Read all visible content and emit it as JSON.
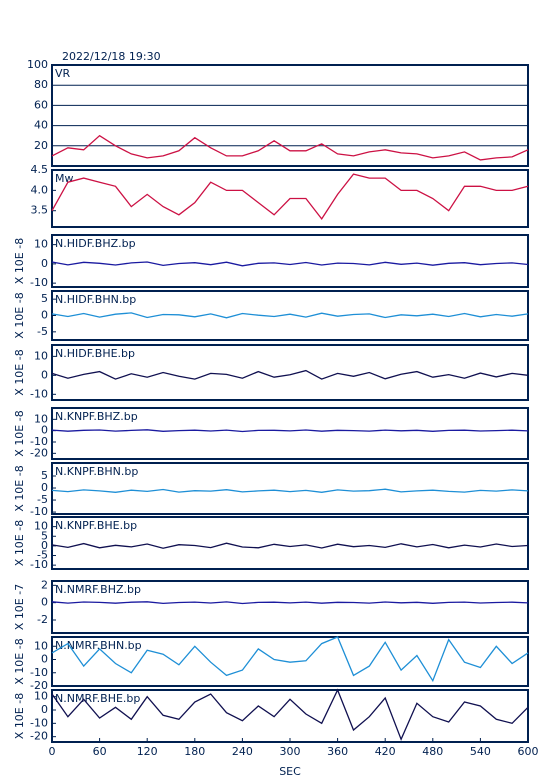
{
  "chart_data": [
    {
      "type": "line",
      "title": "2022/12/18  19:30",
      "label": "VR",
      "color": "#cc1144",
      "grid": true,
      "x": [
        0,
        20,
        40,
        60,
        80,
        100,
        120,
        140,
        160,
        180,
        200,
        220,
        240,
        260,
        280,
        300,
        320,
        340,
        360,
        380,
        400,
        420,
        440,
        460,
        480,
        500,
        520,
        540,
        560,
        580,
        600
      ],
      "values": [
        10,
        18,
        16,
        30,
        20,
        12,
        8,
        10,
        15,
        28,
        18,
        10,
        10,
        15,
        25,
        15,
        15,
        22,
        12,
        10,
        14,
        16,
        13,
        12,
        8,
        10,
        14,
        6,
        8,
        9,
        16
      ],
      "xlim": [
        0,
        600
      ],
      "ylim": [
        0,
        100
      ],
      "yticks": [
        20,
        40,
        60,
        80,
        100
      ]
    },
    {
      "type": "line",
      "label": "Mw",
      "color": "#cc1144",
      "x": [
        0,
        20,
        40,
        60,
        80,
        100,
        120,
        140,
        160,
        180,
        200,
        220,
        240,
        260,
        280,
        300,
        320,
        340,
        360,
        380,
        400,
        420,
        440,
        460,
        480,
        500,
        520,
        540,
        560,
        580,
        600
      ],
      "values": [
        3.5,
        4.2,
        4.3,
        4.2,
        4.1,
        3.6,
        3.9,
        3.6,
        3.4,
        3.7,
        4.2,
        4.0,
        4.0,
        3.7,
        3.4,
        3.8,
        3.8,
        3.3,
        3.9,
        4.4,
        4.3,
        4.3,
        4.0,
        4.0,
        3.8,
        3.5,
        4.1,
        4.1,
        4.0,
        4.0,
        4.1
      ],
      "xlim": [
        0,
        600
      ],
      "ylim": [
        3.1,
        4.5
      ],
      "yticks": [
        3.5,
        {
          "value": 4,
          "label": "4.0"
        },
        4.5
      ]
    },
    {
      "type": "line",
      "label": "N.HIDF.BHZ.bp",
      "ylabel": "X 10E -8",
      "color": "#1a1aa0",
      "x": [
        0,
        20,
        40,
        60,
        80,
        100,
        120,
        140,
        160,
        180,
        200,
        220,
        240,
        260,
        280,
        300,
        320,
        340,
        360,
        380,
        400,
        420,
        440,
        460,
        480,
        500,
        520,
        540,
        560,
        580,
        600
      ],
      "values": [
        1,
        -0.5,
        0.8,
        0.3,
        -0.6,
        0.5,
        1,
        -0.8,
        0.2,
        0.6,
        -0.4,
        0.9,
        -1,
        0.3,
        0.5,
        -0.3,
        0.7,
        -0.6,
        0.4,
        0.2,
        -0.5,
        0.8,
        -0.2,
        0.4,
        -0.7,
        0.3,
        0.6,
        -0.4,
        0.2,
        0.5,
        -0.3
      ],
      "xlim": [
        0,
        600
      ],
      "ylim": [
        -12,
        15
      ],
      "yticks": [
        10,
        0,
        -10
      ]
    },
    {
      "type": "line",
      "label": "N.HIDF.BHN.bp",
      "ylabel": "X 10E -8",
      "color": "#1e8fd6",
      "x": [
        0,
        20,
        40,
        60,
        80,
        100,
        120,
        140,
        160,
        180,
        200,
        220,
        240,
        260,
        280,
        300,
        320,
        340,
        360,
        380,
        400,
        420,
        440,
        460,
        480,
        500,
        520,
        540,
        560,
        580,
        600
      ],
      "values": [
        0.5,
        -0.3,
        0.6,
        -0.5,
        0.4,
        0.8,
        -0.6,
        0.3,
        0.2,
        -0.4,
        0.5,
        -0.7,
        0.6,
        0.1,
        -0.3,
        0.4,
        -0.5,
        0.7,
        -0.2,
        0.3,
        0.5,
        -0.6,
        0.2,
        -0.1,
        0.4,
        -0.3,
        0.6,
        -0.4,
        0.3,
        -0.2,
        0.5
      ],
      "xlim": [
        0,
        600
      ],
      "ylim": [
        -7.5,
        7.5
      ],
      "yticks": [
        5,
        0,
        -5
      ]
    },
    {
      "type": "line",
      "label": "N.HIDF.BHE.bp",
      "ylabel": "X 10E -8",
      "color": "#101050",
      "x": [
        0,
        20,
        40,
        60,
        80,
        100,
        120,
        140,
        160,
        180,
        200,
        220,
        240,
        260,
        280,
        300,
        320,
        340,
        360,
        380,
        400,
        420,
        440,
        460,
        480,
        500,
        520,
        540,
        560,
        580,
        600
      ],
      "values": [
        1,
        -1.5,
        0.5,
        2,
        -2,
        0.8,
        -1,
        1.5,
        -0.5,
        -2,
        1,
        0.5,
        -1.5,
        2,
        -1,
        0.3,
        2.5,
        -2,
        1,
        -0.5,
        1.5,
        -1.8,
        0.6,
        2,
        -1,
        0.4,
        -1.5,
        1.2,
        -0.8,
        1,
        0
      ],
      "xlim": [
        0,
        600
      ],
      "ylim": [
        -13,
        16
      ],
      "yticks": [
        10,
        0,
        -10
      ]
    },
    {
      "type": "line",
      "label": "N.KNPF.BHZ.bp",
      "ylabel": "X 10E -8",
      "color": "#1a1aa0",
      "x": [
        0,
        20,
        40,
        60,
        80,
        100,
        120,
        140,
        160,
        180,
        200,
        220,
        240,
        260,
        280,
        300,
        320,
        340,
        360,
        380,
        400,
        420,
        440,
        460,
        480,
        500,
        520,
        540,
        560,
        580,
        600
      ],
      "values": [
        0.5,
        -0.5,
        0.3,
        0.6,
        -0.4,
        0.2,
        0.8,
        -0.6,
        0.1,
        0.4,
        -0.3,
        0.5,
        -0.7,
        0.2,
        0.3,
        -0.2,
        0.6,
        -0.5,
        0.3,
        0.1,
        -0.4,
        0.5,
        -0.1,
        0.3,
        -0.6,
        0.2,
        0.4,
        -0.3,
        0.1,
        0.4,
        -0.2
      ],
      "xlim": [
        0,
        600
      ],
      "ylim": [
        -25,
        20
      ],
      "yticks": [
        10,
        0,
        -10,
        -20
      ]
    },
    {
      "type": "line",
      "label": "N.KNPF.BHN.bp",
      "ylabel": "X 10E -8",
      "color": "#1e8fd6",
      "x": [
        0,
        20,
        40,
        60,
        80,
        100,
        120,
        140,
        160,
        180,
        200,
        220,
        240,
        260,
        280,
        300,
        320,
        340,
        360,
        380,
        400,
        420,
        440,
        460,
        480,
        500,
        520,
        540,
        560,
        580,
        600
      ],
      "values": [
        -1,
        -1.5,
        -0.8,
        -1.2,
        -1.8,
        -0.9,
        -1.4,
        -0.6,
        -1.7,
        -1.1,
        -1.3,
        -0.7,
        -1.6,
        -1.2,
        -0.9,
        -1.5,
        -1,
        -1.8,
        -0.8,
        -1.3,
        -1.1,
        -0.5,
        -1.6,
        -1.2,
        -0.9,
        -1.4,
        -1.7,
        -1,
        -1.3,
        -0.8,
        -1.2
      ],
      "xlim": [
        0,
        600
      ],
      "ylim": [
        -10.8,
        10.4
      ],
      "yticks": [
        5,
        0,
        -5,
        -10
      ]
    },
    {
      "type": "line",
      "label": "N.KNPF.BHE.bp",
      "ylabel": "X 10E -8",
      "color": "#101050",
      "x": [
        0,
        20,
        40,
        60,
        80,
        100,
        120,
        140,
        160,
        180,
        200,
        220,
        240,
        260,
        280,
        300,
        320,
        340,
        360,
        380,
        400,
        420,
        440,
        460,
        480,
        500,
        520,
        540,
        560,
        580,
        600
      ],
      "values": [
        0.5,
        -0.8,
        1.2,
        -1,
        0.3,
        -0.5,
        1,
        -1.2,
        0.6,
        0.2,
        -0.9,
        1.4,
        -0.6,
        -1,
        0.8,
        -0.3,
        0.5,
        -1.1,
        0.9,
        -0.4,
        0.2,
        -0.8,
        1.1,
        -0.5,
        0.7,
        -1,
        0.4,
        -0.6,
        1,
        -0.3,
        0.2
      ],
      "xlim": [
        0,
        600
      ],
      "ylim": [
        -12,
        15
      ],
      "yticks": [
        10,
        5,
        0,
        -5,
        -10
      ]
    },
    {
      "type": "line",
      "label": "N.NMRF.BHZ.bp",
      "ylabel": "X 10E -7",
      "color": "#1a1aa0",
      "x": [
        0,
        20,
        40,
        60,
        80,
        100,
        120,
        140,
        160,
        180,
        200,
        220,
        240,
        260,
        280,
        300,
        320,
        340,
        360,
        380,
        400,
        420,
        440,
        460,
        480,
        500,
        520,
        540,
        560,
        580,
        600
      ],
      "values": [
        0.1,
        -0.05,
        0.08,
        0.03,
        -0.06,
        0.05,
        0.1,
        -0.08,
        0.02,
        0.06,
        -0.04,
        0.09,
        -0.1,
        0.03,
        0.05,
        -0.03,
        0.07,
        -0.06,
        0.04,
        0.02,
        -0.05,
        0.08,
        -0.02,
        0.04,
        -0.07,
        0.03,
        0.06,
        -0.04,
        0.02,
        0.05,
        -0.03
      ],
      "xlim": [
        0,
        600
      ],
      "ylim": [
        -3.5,
        2.5
      ],
      "yticks": [
        2,
        0,
        -2
      ]
    },
    {
      "type": "line",
      "label": "N.NMRF.BHN.bp",
      "ylabel": "X 10E -8",
      "color": "#1e8fd6",
      "x": [
        0,
        20,
        40,
        60,
        80,
        100,
        120,
        140,
        160,
        180,
        200,
        220,
        240,
        260,
        280,
        300,
        320,
        340,
        360,
        380,
        400,
        420,
        440,
        460,
        480,
        500,
        520,
        540,
        560,
        580,
        600
      ],
      "values": [
        5,
        12,
        -5,
        8,
        -3,
        -10,
        7,
        4,
        -4,
        10,
        -2,
        -12,
        -8,
        8,
        0,
        -2,
        -1,
        12,
        17,
        -12,
        -5,
        13,
        -8,
        3,
        -16,
        15,
        -2,
        -6,
        10,
        -3,
        5
      ],
      "xlim": [
        0,
        600
      ],
      "ylim": [
        -20,
        17
      ],
      "yticks": [
        10,
        0,
        -10,
        -20
      ]
    },
    {
      "type": "line",
      "label": "N.NMRF.BHE.bp",
      "ylabel": "X 10E -8",
      "xlabel": "SEC",
      "color": "#101050",
      "x": [
        0,
        20,
        40,
        60,
        80,
        100,
        120,
        140,
        160,
        180,
        200,
        220,
        240,
        260,
        280,
        300,
        320,
        340,
        360,
        380,
        400,
        420,
        440,
        460,
        480,
        500,
        520,
        540,
        560,
        580,
        600
      ],
      "values": [
        12,
        -5,
        8,
        -6,
        2,
        -7,
        10,
        -4,
        -7,
        6,
        12,
        -2,
        -8,
        3,
        -5,
        8,
        -3,
        -10,
        15,
        -15,
        -5,
        9,
        -22,
        5,
        -5,
        -9,
        6,
        3,
        -7,
        -10,
        2
      ],
      "xlim": [
        0,
        600
      ],
      "ylim": [
        -24,
        15
      ],
      "yticks": [
        10,
        0,
        -10,
        -20
      ],
      "xticks": [
        0,
        60,
        120,
        180,
        240,
        300,
        360,
        420,
        480,
        540,
        600
      ]
    }
  ]
}
